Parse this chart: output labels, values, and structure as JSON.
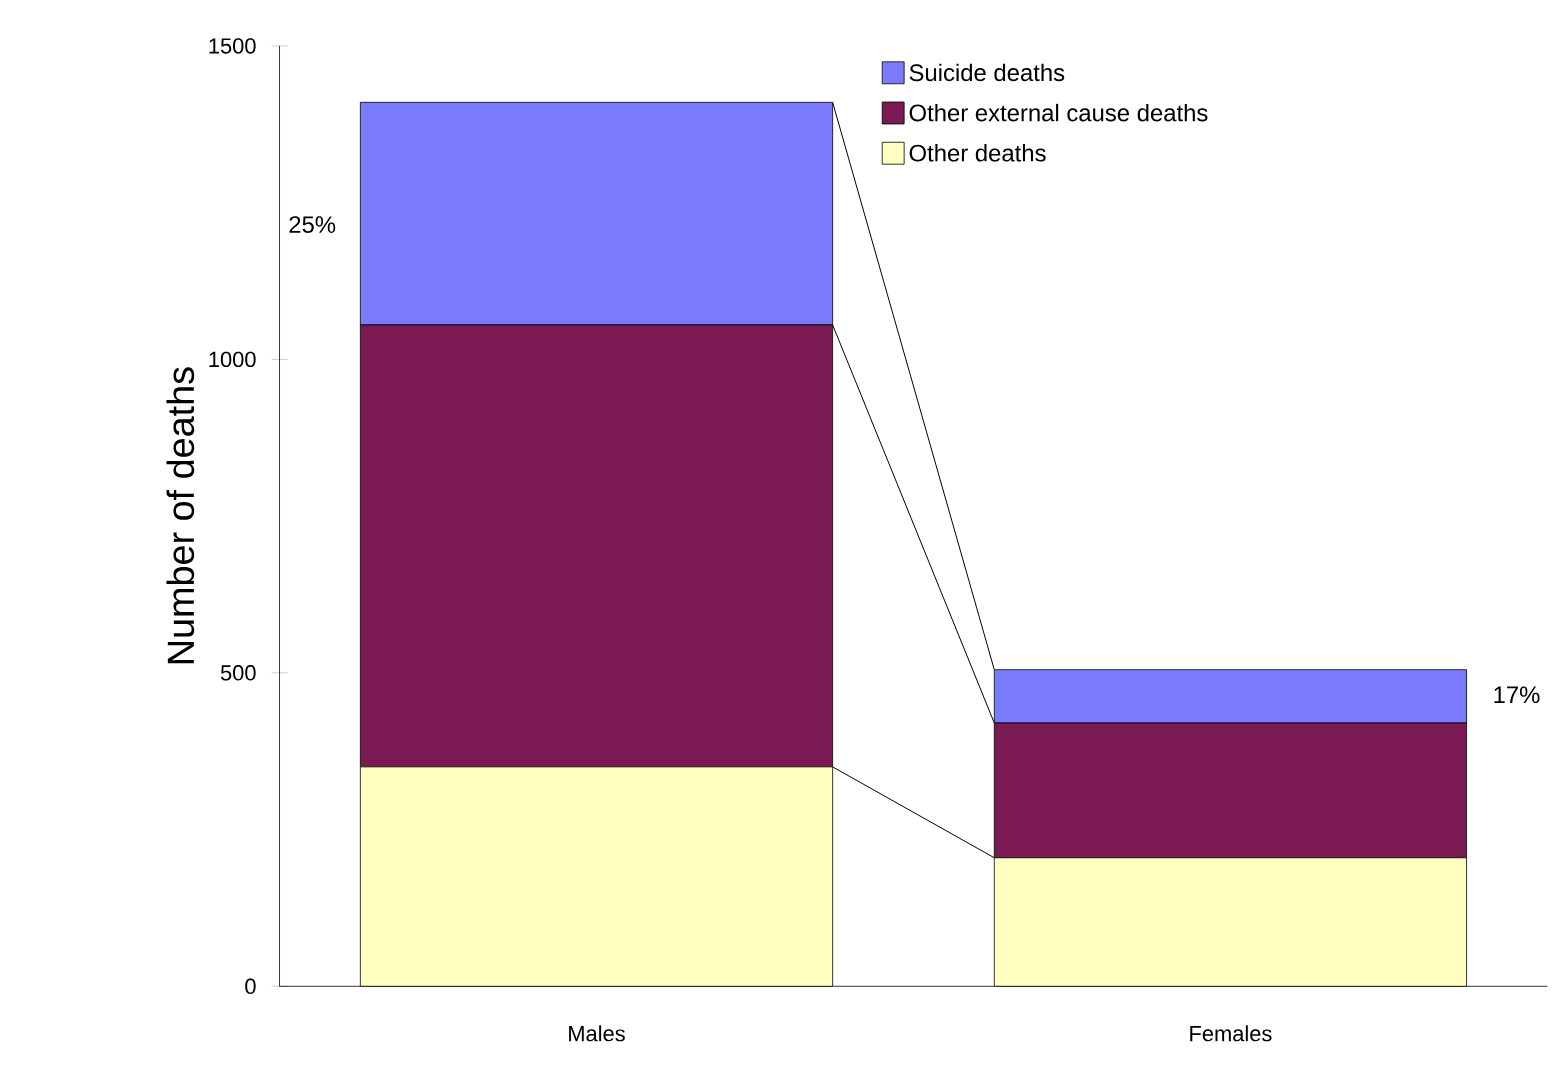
{
  "chart_data": {
    "type": "bar",
    "stacked": true,
    "ylabel": "Number of deaths",
    "categories": [
      "Males",
      "Females"
    ],
    "series": [
      {
        "name": "Other deaths",
        "color": "#ffffc0",
        "values": [
          350,
          205
        ]
      },
      {
        "name": "Other external cause deaths",
        "color": "#7b1952",
        "values": [
          705,
          215
        ]
      },
      {
        "name": "Suicide deaths",
        "color": "#7b7bff",
        "values": [
          355,
          85
        ]
      }
    ],
    "ylim": [
      0,
      1500
    ],
    "yticks": [
      0,
      500,
      1000,
      1500
    ],
    "legend": "top right",
    "annotations": [
      "25%",
      "17%"
    ]
  }
}
